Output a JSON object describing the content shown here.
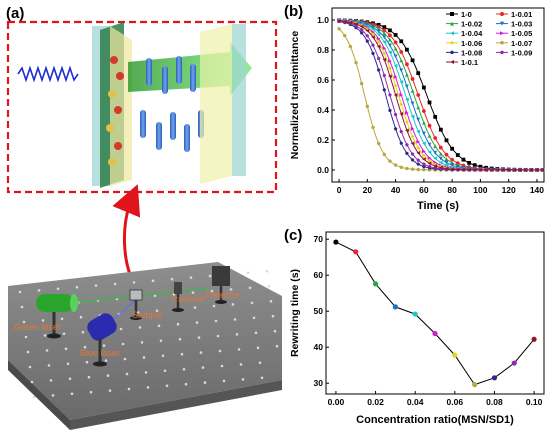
{
  "figure": {
    "panel_a": {
      "label": "(a)",
      "setup_labels": {
        "green_laser": "Green laser",
        "blue_laser": "Blue laser",
        "sample": "Sample",
        "transmit": "Transmit",
        "detector": "Detector"
      }
    },
    "panel_b": {
      "label": "(b)"
    },
    "panel_c": {
      "label": "(c)"
    }
  },
  "chart_data": [
    {
      "type": "line",
      "panel": "(b)",
      "xlabel": "Time (s)",
      "ylabel": "Normalized transmittance",
      "xlim": [
        -5,
        145
      ],
      "ylim": [
        -0.08,
        1.08
      ],
      "xticks": [
        0,
        20,
        40,
        60,
        80,
        100,
        120,
        140
      ],
      "yticks": [
        0.0,
        0.2,
        0.4,
        0.6,
        0.8,
        1.0
      ],
      "legend_placement": "top-right",
      "series": [
        {
          "name": "1-0",
          "color": "#000000",
          "marker": "square",
          "midpoint": 62,
          "width": 10.0
        },
        {
          "name": "1-0.01",
          "color": "#e8262b",
          "marker": "circle",
          "midpoint": 56,
          "width": 9.2
        },
        {
          "name": "1-0.02",
          "color": "#23a93c",
          "marker": "triangle",
          "midpoint": 53,
          "width": 9.0
        },
        {
          "name": "1-0.03",
          "color": "#1c6ec9",
          "marker": "triangle-down",
          "midpoint": 50,
          "width": 8.8
        },
        {
          "name": "1-0.04",
          "color": "#16c9c9",
          "marker": "triangle-left",
          "midpoint": 47,
          "width": 8.5
        },
        {
          "name": "1-0.05",
          "color": "#d21bd2",
          "marker": "triangle-right",
          "midpoint": 44,
          "width": 8.2
        },
        {
          "name": "1-0.06",
          "color": "#e6d21a",
          "marker": "diamond",
          "midpoint": 42,
          "width": 8.0
        },
        {
          "name": "1-0.07",
          "color": "#b9a640",
          "marker": "hexagon",
          "midpoint": 18,
          "width": 6.5
        },
        {
          "name": "1-0.08",
          "color": "#2a2a8c",
          "marker": "star",
          "midpoint": 33,
          "width": 7.2
        },
        {
          "name": "1-0.09",
          "color": "#8b2bb0",
          "marker": "pentagon",
          "midpoint": 36,
          "width": 7.5
        },
        {
          "name": "1-0.1",
          "color": "#8b1a2a",
          "marker": "triangle-left",
          "midpoint": 40,
          "width": 7.8
        }
      ],
      "x_samples": [
        0,
        4,
        8,
        12,
        16,
        20,
        24,
        28,
        32,
        36,
        40,
        44,
        48,
        52,
        56,
        60,
        64,
        68,
        72,
        76,
        80,
        84,
        88,
        92,
        96,
        100,
        104,
        108,
        112,
        116,
        120,
        124,
        128,
        132,
        136,
        140,
        144
      ]
    },
    {
      "type": "line",
      "panel": "(c)",
      "xlabel": "Concentration ratio(MSN/SD1)",
      "ylabel": "Rewriting time (s)",
      "xlim": [
        -0.005,
        0.105
      ],
      "ylim": [
        27,
        72
      ],
      "xticks": [
        0.0,
        0.02,
        0.04,
        0.06,
        0.08,
        0.1
      ],
      "xtick_labels": [
        "0.00",
        "0.02",
        "0.04",
        "0.06",
        "0.08",
        "0.10"
      ],
      "yticks": [
        30,
        40,
        50,
        60,
        70
      ],
      "x": [
        0.0,
        0.01,
        0.02,
        0.03,
        0.04,
        0.05,
        0.06,
        0.07,
        0.08,
        0.09,
        0.1
      ],
      "y": [
        69.2,
        66.5,
        57.6,
        51.2,
        49.2,
        43.8,
        37.8,
        29.6,
        31.5,
        35.6,
        42.2
      ],
      "point_colors": [
        "#000000",
        "#e8262b",
        "#23a93c",
        "#1c6ec9",
        "#16c9c9",
        "#d21bd2",
        "#e6d21a",
        "#b9a640",
        "#2a2a8c",
        "#8b2bb0",
        "#8b1a2a"
      ]
    }
  ]
}
